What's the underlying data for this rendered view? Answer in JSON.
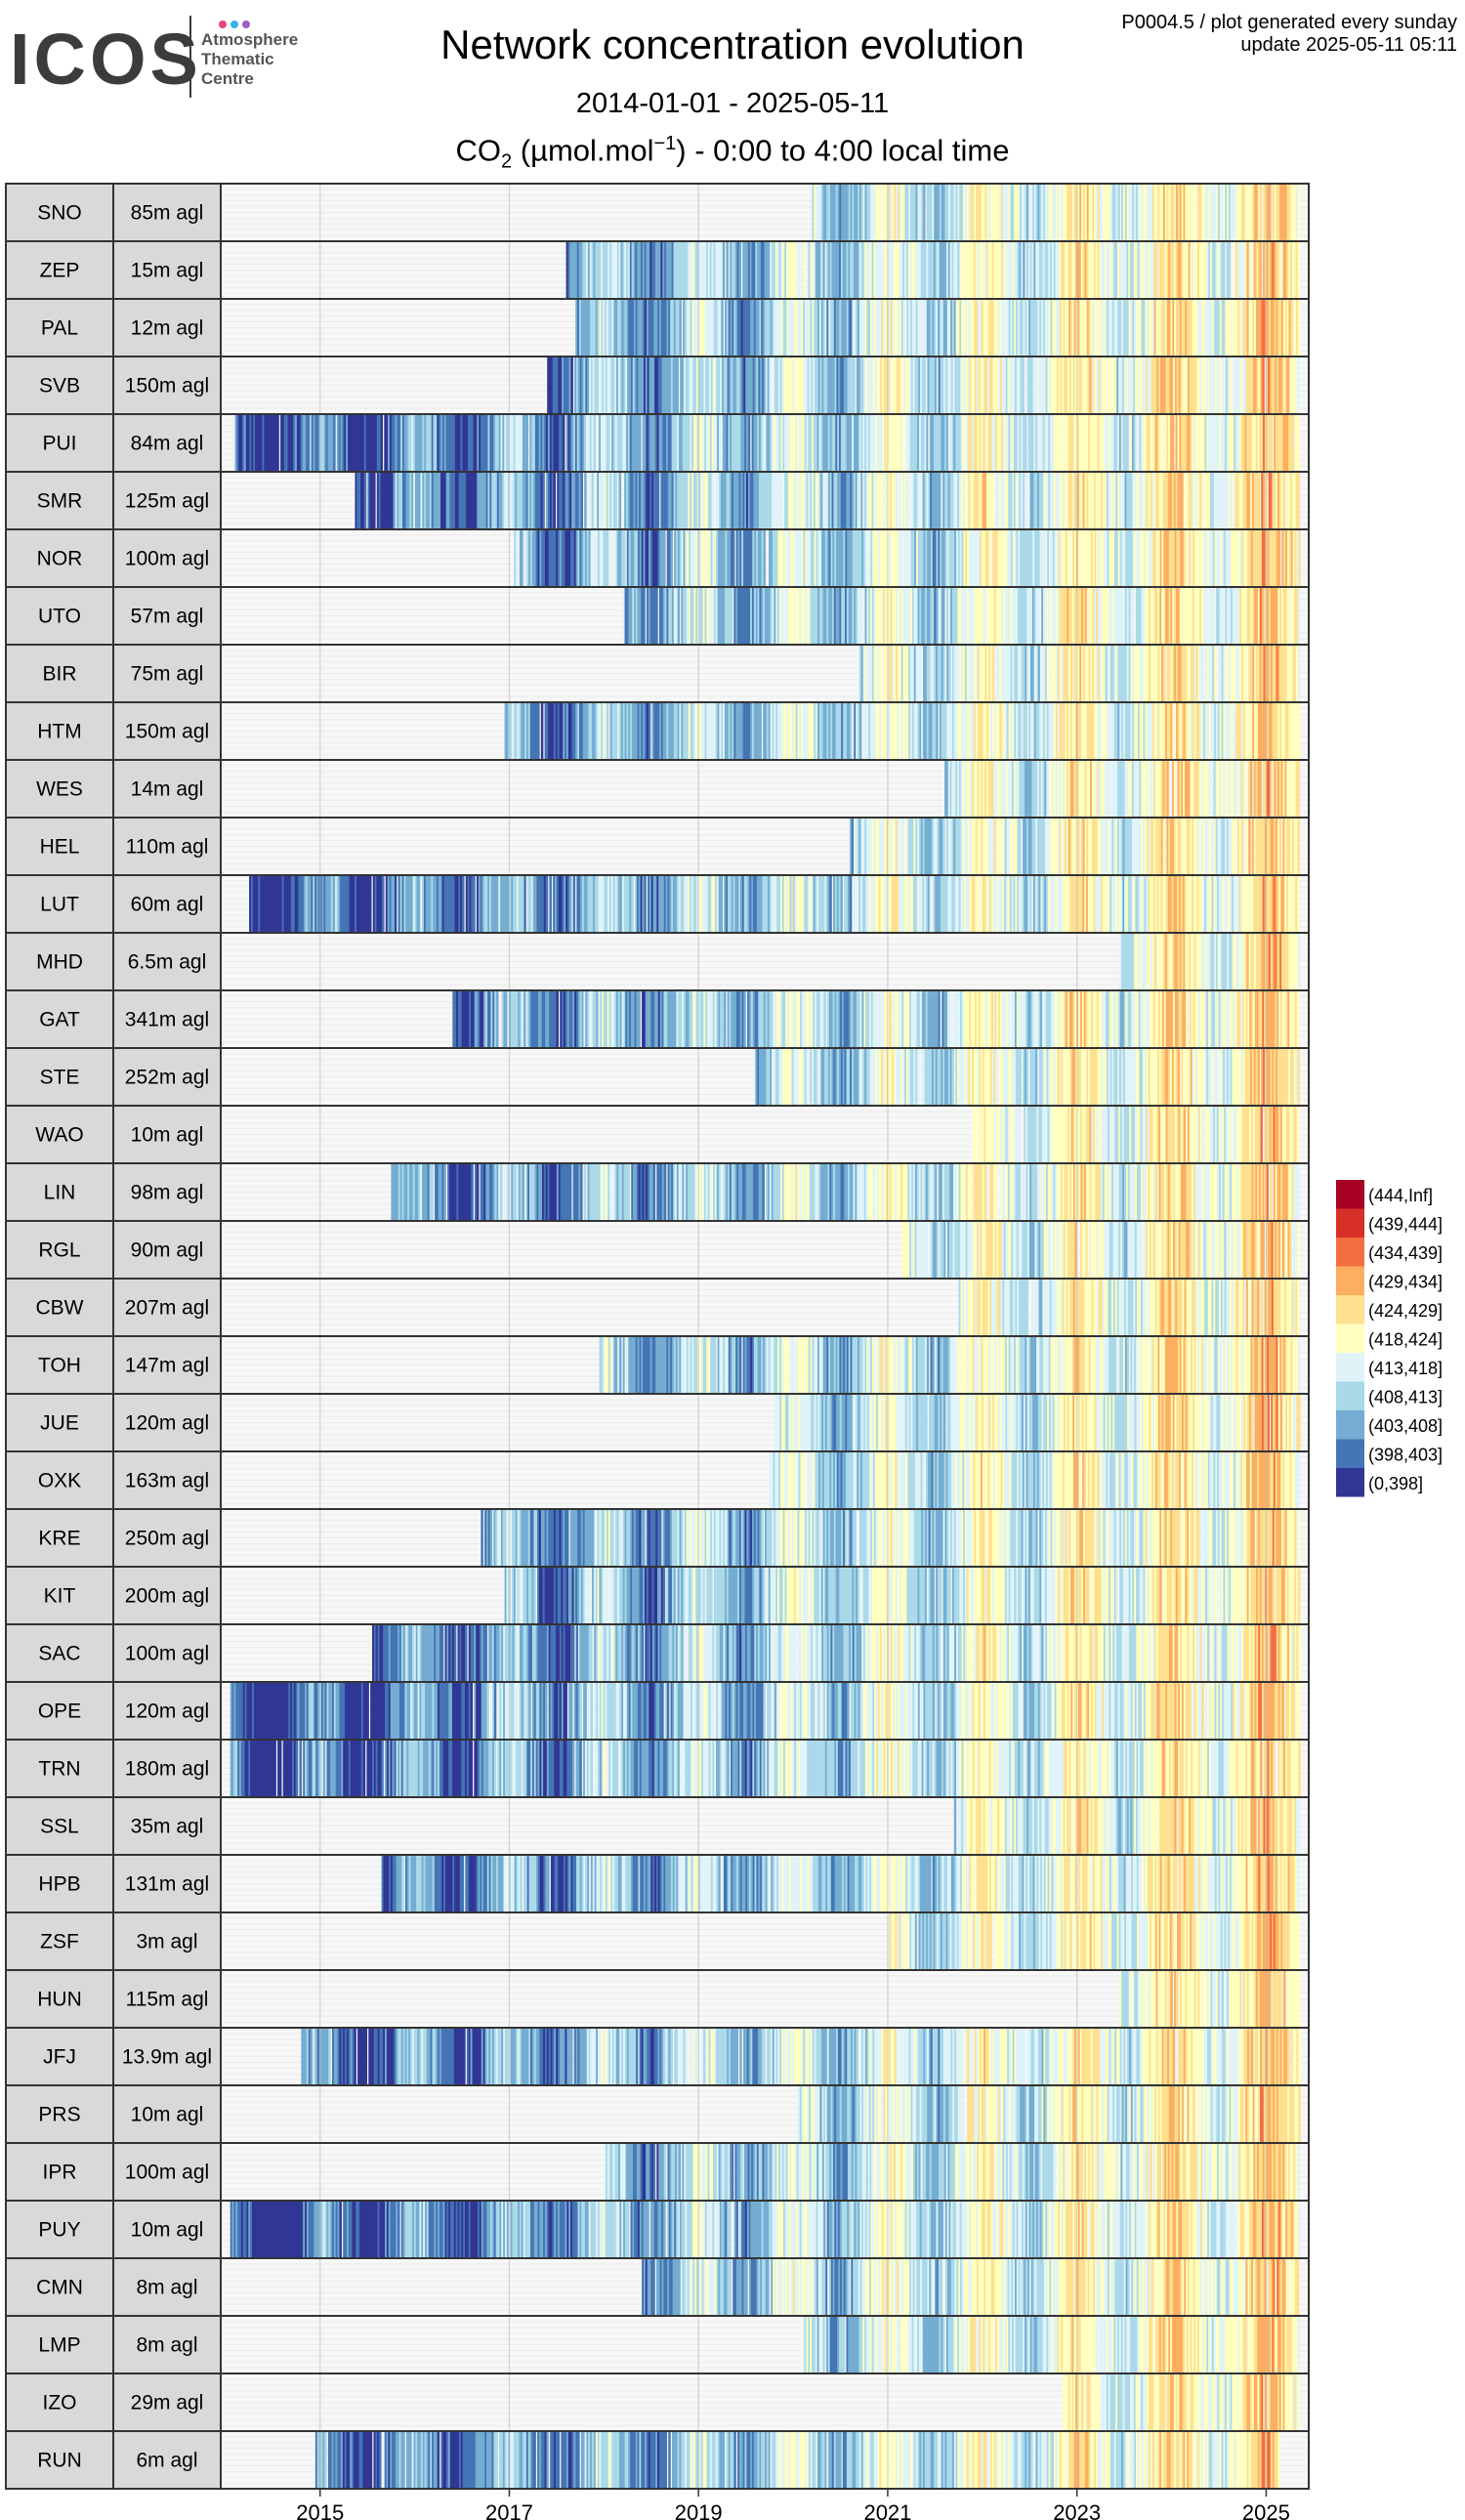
{
  "header": {
    "logo": {
      "text": "ICOS",
      "line1": "Atmosphere",
      "line2": "Thematic",
      "line3": "Centre",
      "dot_colors": [
        "#e8457e",
        "#36b3e6",
        "#9b5ec2"
      ]
    },
    "title": "Network concentration evolution",
    "date_range": "2014-01-01 - 2025-05-11",
    "subtitle_prefix": "CO",
    "subtitle_sub": "2",
    "subtitle_unit_open": " (µmol.mol",
    "subtitle_sup": "−1",
    "subtitle_suffix": ") - 0:00 to 4:00 local time",
    "meta_line1": "P0004.5 / plot generated every sunday",
    "meta_line2": "update  2025-05-11 05:11"
  },
  "chart_data": {
    "type": "heatmap",
    "x_domain": [
      2013.95,
      2025.45
    ],
    "x_ticks": [
      2015,
      2017,
      2019,
      2021,
      2023,
      2025
    ],
    "grid": true,
    "legend_position": "right",
    "legend": [
      {
        "label": "(444,Inf]",
        "color": "#a50026"
      },
      {
        "label": "(439,444]",
        "color": "#d73027"
      },
      {
        "label": "(434,439]",
        "color": "#f46d43"
      },
      {
        "label": "(429,434]",
        "color": "#fdae61"
      },
      {
        "label": "(424,429]",
        "color": "#fee090"
      },
      {
        "label": "(418,424]",
        "color": "#ffffbf"
      },
      {
        "label": "(413,418]",
        "color": "#e0f3f8"
      },
      {
        "label": "(408,413]",
        "color": "#abd9e9"
      },
      {
        "label": "(403,408]",
        "color": "#74add1"
      },
      {
        "label": "(398,403]",
        "color": "#4575b4"
      },
      {
        "label": "(0,398]",
        "color": "#313695"
      }
    ],
    "stations": [
      {
        "code": "SNO",
        "height": "85m agl",
        "start": 2020.2,
        "end": 2025.35
      },
      {
        "code": "ZEP",
        "height": "15m agl",
        "start": 2017.6,
        "end": 2025.35
      },
      {
        "code": "PAL",
        "height": "12m agl",
        "start": 2017.7,
        "end": 2025.35
      },
      {
        "code": "SVB",
        "height": "150m agl",
        "start": 2017.4,
        "end": 2025.35
      },
      {
        "code": "PUI",
        "height": "84m agl",
        "start": 2014.1,
        "end": 2025.35
      },
      {
        "code": "SMR",
        "height": "125m agl",
        "start": 2015.35,
        "end": 2025.35
      },
      {
        "code": "NOR",
        "height": "100m agl",
        "start": 2017.05,
        "end": 2025.35
      },
      {
        "code": "UTO",
        "height": "57m agl",
        "start": 2018.2,
        "end": 2025.35
      },
      {
        "code": "BIR",
        "height": "75m agl",
        "start": 2020.7,
        "end": 2025.35
      },
      {
        "code": "HTM",
        "height": "150m agl",
        "start": 2016.95,
        "end": 2025.35
      },
      {
        "code": "WES",
        "height": "14m agl",
        "start": 2021.6,
        "end": 2025.35
      },
      {
        "code": "HEL",
        "height": "110m agl",
        "start": 2020.6,
        "end": 2025.35
      },
      {
        "code": "LUT",
        "height": "60m agl",
        "start": 2014.25,
        "end": 2025.35
      },
      {
        "code": "MHD",
        "height": "6.5m agl",
        "start": 2023.45,
        "end": 2025.35
      },
      {
        "code": "GAT",
        "height": "341m agl",
        "start": 2016.4,
        "end": 2025.35
      },
      {
        "code": "STE",
        "height": "252m agl",
        "start": 2019.6,
        "end": 2025.35
      },
      {
        "code": "WAO",
        "height": "10m agl",
        "start": 2021.9,
        "end": 2025.35
      },
      {
        "code": "LIN",
        "height": "98m agl",
        "start": 2015.75,
        "end": 2025.35
      },
      {
        "code": "RGL",
        "height": "90m agl",
        "start": 2021.15,
        "end": 2025.35
      },
      {
        "code": "CBW",
        "height": "207m agl",
        "start": 2021.75,
        "end": 2025.35
      },
      {
        "code": "TOH",
        "height": "147m agl",
        "start": 2017.95,
        "end": 2025.35
      },
      {
        "code": "JUE",
        "height": "120m agl",
        "start": 2019.8,
        "end": 2025.35
      },
      {
        "code": "OXK",
        "height": "163m agl",
        "start": 2019.75,
        "end": 2025.35
      },
      {
        "code": "KRE",
        "height": "250m agl",
        "start": 2016.7,
        "end": 2025.35
      },
      {
        "code": "KIT",
        "height": "200m agl",
        "start": 2016.95,
        "end": 2025.35
      },
      {
        "code": "SAC",
        "height": "100m agl",
        "start": 2015.55,
        "end": 2025.35
      },
      {
        "code": "OPE",
        "height": "120m agl",
        "start": 2014.05,
        "end": 2025.35
      },
      {
        "code": "TRN",
        "height": "180m agl",
        "start": 2014.05,
        "end": 2025.35
      },
      {
        "code": "SSL",
        "height": "35m agl",
        "start": 2021.7,
        "end": 2025.35
      },
      {
        "code": "HPB",
        "height": "131m agl",
        "start": 2015.65,
        "end": 2025.35
      },
      {
        "code": "ZSF",
        "height": "3m agl",
        "start": 2021.0,
        "end": 2025.35
      },
      {
        "code": "HUN",
        "height": "115m agl",
        "start": 2023.45,
        "end": 2025.35
      },
      {
        "code": "JFJ",
        "height": "13.9m agl",
        "start": 2014.8,
        "end": 2025.35
      },
      {
        "code": "PRS",
        "height": "10m agl",
        "start": 2020.05,
        "end": 2025.35
      },
      {
        "code": "IPR",
        "height": "100m agl",
        "start": 2018.0,
        "end": 2025.35
      },
      {
        "code": "PUY",
        "height": "10m agl",
        "start": 2014.05,
        "end": 2025.35
      },
      {
        "code": "CMN",
        "height": "8m agl",
        "start": 2018.4,
        "end": 2025.35
      },
      {
        "code": "LMP",
        "height": "8m agl",
        "start": 2020.1,
        "end": 2025.35
      },
      {
        "code": "IZO",
        "height": "29m agl",
        "start": 2022.85,
        "end": 2025.35
      },
      {
        "code": "RUN",
        "height": "6m agl",
        "start": 2014.95,
        "end": 2025.15
      }
    ]
  }
}
